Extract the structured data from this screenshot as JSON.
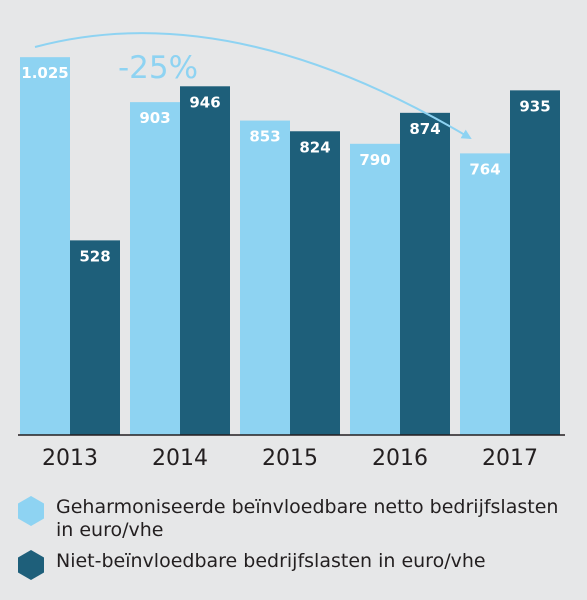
{
  "chart_data": {
    "type": "bar",
    "categories": [
      "2013",
      "2014",
      "2015",
      "2016",
      "2017"
    ],
    "series": [
      {
        "name": "Geharmoniseerde beïnvloedbare netto bedrijfslasten in euro/vhe",
        "values": [
          1025,
          903,
          853,
          790,
          764
        ],
        "labels": [
          "1.025",
          "903",
          "853",
          "790",
          "764"
        ],
        "color": "#8ed3f2"
      },
      {
        "name": "Niet-beïnvloedbare bedrijfslasten in euro/vhe",
        "values": [
          528,
          946,
          824,
          874,
          935
        ],
        "labels": [
          "528",
          "946",
          "824",
          "874",
          "935"
        ],
        "color": "#1e5f7a"
      }
    ],
    "annotation": "-25%",
    "annotation_color": "#8ed3f2",
    "ylim": [
      0,
      1115
    ],
    "grid": false,
    "legend_position": "bottom",
    "xlabel": "",
    "ylabel": ""
  }
}
